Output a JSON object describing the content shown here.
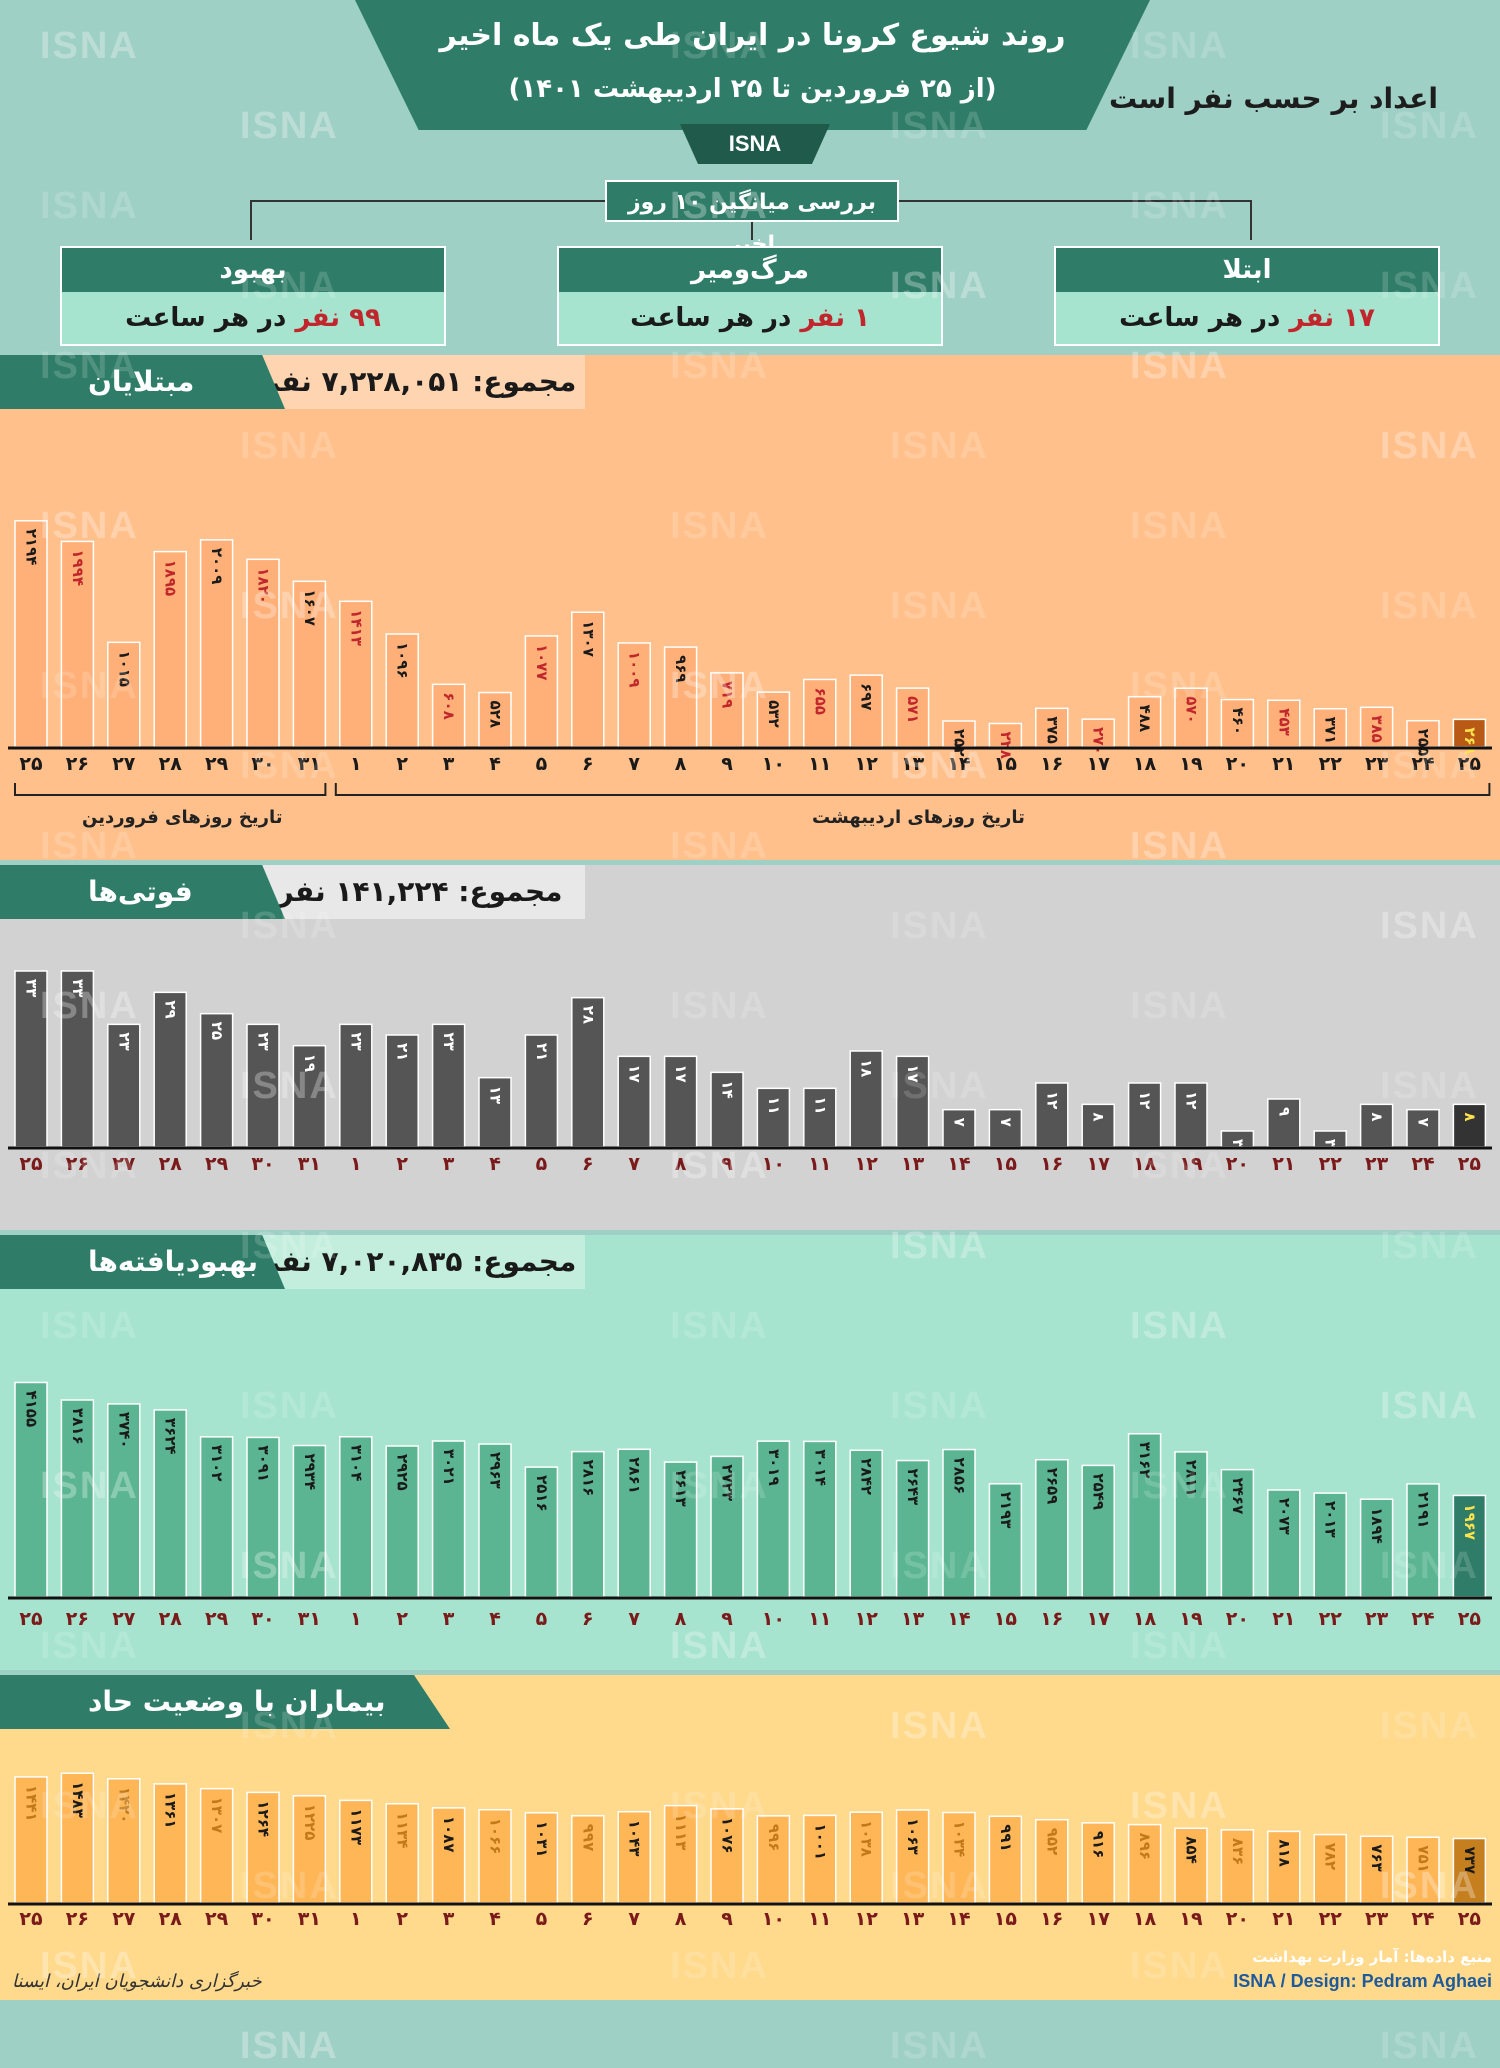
{
  "header": {
    "title": "روند شیوع کرونا در ایران طی یک ماه اخیر",
    "subtitle": "(از ۲۵ فروردین تا ۲۵ اردیبهشت ۱۴۰۱)",
    "brand": "ISNA",
    "note": "اعداد بر حسب نفر است"
  },
  "average": {
    "label": "بررسی میانگین ۱۰ روز اخیر",
    "recovery": {
      "title": "بهبود",
      "value": "۹۹ نفر",
      "suffix": "در هر ساعت"
    },
    "deaths": {
      "title": "مرگ‌ومیر",
      "value": "۱ نفر",
      "suffix": "در هر ساعت"
    },
    "infections": {
      "title": "ابتلا",
      "value": "۱۷ نفر",
      "suffix": "در هر ساعت"
    }
  },
  "watermark": "ISNA",
  "colors": {
    "teal": "#2f7d68",
    "orange": "#ffc08c",
    "gray": "#d2d2d2",
    "mint": "#a6e4cf",
    "yellow": "#ffd98c",
    "red": "#c0262c"
  },
  "bracket": {
    "farvardin": "تاریخ روزهای فروردین",
    "ordibehesht": "تاریخ روزهای اردیبهشت"
  },
  "footer": {
    "source": "منبع داده‌ها: آمار وزارت بهداشت",
    "credit": "ISNA / Design: Pedram Aghaei",
    "logo": "خبرگزاری دانشجویان ایران، ایسنا"
  },
  "chart_data": [
    {
      "type": "bar",
      "id": "infections",
      "title": "مبتلایان",
      "total": "مجموع: ۷,۲۲۸,۰۵۱ نفر",
      "categories": [
        "۲۵",
        "۲۶",
        "۲۷",
        "۲۸",
        "۲۹",
        "۳۰",
        "۳۱",
        "۱",
        "۲",
        "۳",
        "۴",
        "۵",
        "۶",
        "۷",
        "۸",
        "۹",
        "۱۰",
        "۱۱",
        "۱۲",
        "۱۳",
        "۱۴",
        "۱۵",
        "۱۶",
        "۱۷",
        "۱۸",
        "۱۹",
        "۲۰",
        "۲۱",
        "۲۲",
        "۲۳",
        "۲۴",
        "۲۵"
      ],
      "values": [
        2194,
        1994,
        1015,
        1895,
        2009,
        1820,
        1607,
        1413,
        1096,
        608,
        528,
        1077,
        1307,
        1009,
        969,
        719,
        532,
        655,
        697,
        571,
        252,
        228,
        375,
        270,
        488,
        570,
        460,
        453,
        371,
        385,
        255,
        268
      ],
      "labels": [
        "۲۱۹۴",
        "۱۹۹۴",
        "۱۰۱۵",
        "۱۸۹۵",
        "۲۰۰۹",
        "۱۸۲۰",
        "۱۶۰۷",
        "۱۴۱۳",
        "۱۰۹۶",
        "۶۰۸",
        "۵۲۸",
        "۱۰۷۷",
        "۱۳۰۷",
        "۱۰۰۹",
        "۹۶۹",
        "۷۱۹",
        "۵۳۲",
        "۶۵۵",
        "۶۹۷",
        "۵۷۱",
        "۲۵۲",
        "۲۲۸",
        "۳۷۵",
        "۲۷۰",
        "۴۸۸",
        "۵۷۰",
        "۴۶۰",
        "۴۵۳",
        "۳۷۱",
        "۳۸۵",
        "۲۵۵",
        "۲۶۸"
      ],
      "labelColors": [
        "k",
        "r",
        "k",
        "r",
        "k",
        "r",
        "k",
        "r",
        "k",
        "r",
        "k",
        "r",
        "k",
        "r",
        "k",
        "r",
        "k",
        "r",
        "k",
        "r",
        "k",
        "r",
        "k",
        "r",
        "k",
        "r",
        "k",
        "r",
        "k",
        "r",
        "k",
        "y"
      ]
    },
    {
      "type": "bar",
      "id": "deaths",
      "title": "فوتی‌ها",
      "total": "مجموع: ۱۴۱,۲۲۴ نفر",
      "categories": [
        "۲۵",
        "۲۶",
        "۲۷",
        "۲۸",
        "۲۹",
        "۳۰",
        "۳۱",
        "۱",
        "۲",
        "۳",
        "۴",
        "۵",
        "۶",
        "۷",
        "۸",
        "۹",
        "۱۰",
        "۱۱",
        "۱۲",
        "۱۳",
        "۱۴",
        "۱۵",
        "۱۶",
        "۱۷",
        "۱۸",
        "۱۹",
        "۲۰",
        "۲۱",
        "۲۲",
        "۲۳",
        "۲۴",
        "۲۵"
      ],
      "values": [
        33,
        33,
        23,
        29,
        25,
        23,
        19,
        23,
        21,
        23,
        13,
        21,
        28,
        17,
        17,
        14,
        11,
        11,
        18,
        17,
        7,
        7,
        12,
        8,
        12,
        12,
        3,
        9,
        3,
        8,
        7,
        8
      ],
      "labels": [
        "۳۳",
        "۳۳",
        "۲۳",
        "۲۹",
        "۲۵",
        "۲۳",
        "۱۹",
        "۲۳",
        "۲۱",
        "۲۳",
        "۱۳",
        "۲۱",
        "۲۸",
        "۱۷",
        "۱۷",
        "۱۴",
        "۱۱",
        "۱۱",
        "۱۸",
        "۱۷",
        "۷",
        "۷",
        "۱۲",
        "۸",
        "۱۲",
        "۱۲",
        "۳",
        "۹",
        "۳",
        "۸",
        "۷",
        "۸"
      ],
      "labelColors": [
        "w",
        "w",
        "w",
        "w",
        "w",
        "w",
        "w",
        "w",
        "w",
        "w",
        "w",
        "w",
        "w",
        "w",
        "w",
        "w",
        "w",
        "w",
        "w",
        "w",
        "w",
        "w",
        "w",
        "w",
        "w",
        "w",
        "w",
        "w",
        "w",
        "w",
        "w",
        "y"
      ]
    },
    {
      "type": "bar",
      "id": "recovered",
      "title": "بهبودیافته‌ها",
      "total": "مجموع: ۷,۰۲۰,۸۳۵ نفر",
      "categories": [
        "۲۵",
        "۲۶",
        "۲۷",
        "۲۸",
        "۲۹",
        "۳۰",
        "۳۱",
        "۱",
        "۲",
        "۳",
        "۴",
        "۵",
        "۶",
        "۷",
        "۸",
        "۹",
        "۱۰",
        "۱۱",
        "۱۲",
        "۱۳",
        "۱۴",
        "۱۵",
        "۱۶",
        "۱۷",
        "۱۸",
        "۱۹",
        "۲۰",
        "۲۱",
        "۲۲",
        "۲۳",
        "۲۴",
        "۲۵"
      ],
      "values": [
        4155,
        3816,
        3740,
        3624,
        3102,
        3091,
        2934,
        3104,
        2925,
        3021,
        2963,
        2516,
        2816,
        2861,
        2613,
        2723,
        3019,
        3014,
        2842,
        2643,
        2856,
        2193,
        2659,
        2549,
        3162,
        2811,
        2467,
        2073,
        2013,
        1894,
        2191,
        1967
      ],
      "labels": [
        "۴۱۵۵",
        "۳۸۱۶",
        "۳۷۴۰",
        "۳۶۲۴",
        "۳۱۰۲",
        "۳۰۹۱",
        "۲۹۳۴",
        "۳۱۰۴",
        "۲۹۲۵",
        "۳۰۲۱",
        "۲۹۶۳",
        "۲۵۱۶",
        "۲۸۱۶",
        "۲۸۶۱",
        "۲۶۱۳",
        "۲۷۲۳",
        "۳۰۱۹",
        "۳۰۱۴",
        "۲۸۴۲",
        "۲۶۴۳",
        "۲۸۵۶",
        "۲۱۹۳",
        "۲۶۵۹",
        "۲۵۴۹",
        "۳۱۶۲",
        "۲۸۱۱",
        "۲۴۶۷",
        "۲۰۷۳",
        "۲۰۱۳",
        "۱۸۹۴",
        "۲۱۹۱",
        "۱۹۶۷"
      ],
      "labelColors": [
        "k",
        "k",
        "k",
        "k",
        "k",
        "k",
        "k",
        "k",
        "k",
        "k",
        "k",
        "k",
        "k",
        "k",
        "k",
        "k",
        "k",
        "k",
        "k",
        "k",
        "k",
        "k",
        "k",
        "k",
        "k",
        "k",
        "k",
        "k",
        "k",
        "k",
        "k",
        "y"
      ]
    },
    {
      "type": "bar",
      "id": "critical",
      "title": "بیماران با وضعیت حاد",
      "categories": [
        "۲۵",
        "۲۶",
        "۲۷",
        "۲۸",
        "۲۹",
        "۳۰",
        "۳۱",
        "۱",
        "۲",
        "۳",
        "۴",
        "۵",
        "۶",
        "۷",
        "۸",
        "۹",
        "۱۰",
        "۱۱",
        "۱۲",
        "۱۳",
        "۱۴",
        "۱۵",
        "۱۶",
        "۱۷",
        "۱۸",
        "۱۹",
        "۲۰",
        "۲۱",
        "۲۲",
        "۲۳",
        "۲۴",
        "۲۵"
      ],
      "values": [
        1441,
        1483,
        1420,
        1361,
        1307,
        1264,
        1225,
        1173,
        1134,
        1087,
        1066,
        1031,
        997,
        1043,
        1113,
        1076,
        996,
        1001,
        1038,
        1063,
        1034,
        991,
        952,
        916,
        896,
        854,
        836,
        818,
        782,
        763,
        751,
        737
      ],
      "labels": [
        "۱۴۴۱",
        "۱۴۸۳",
        "۱۴۲۰",
        "۱۳۶۱",
        "۱۳۰۷",
        "۱۲۶۴",
        "۱۲۲۵",
        "۱۱۷۳",
        "۱۱۳۴",
        "۱۰۸۷",
        "۱۰۶۶",
        "۱۰۳۱",
        "۹۹۷",
        "۱۰۴۳",
        "۱۱۱۳",
        "۱۰۷۶",
        "۹۹۶",
        "۱۰۰۱",
        "۱۰۳۸",
        "۱۰۶۳",
        "۱۰۳۴",
        "۹۹۱",
        "۹۵۲",
        "۹۱۶",
        "۸۹۶",
        "۸۵۴",
        "۸۳۶",
        "۸۱۸",
        "۷۸۲",
        "۷۶۳",
        "۷۵۱",
        "۷۳۷"
      ],
      "labelColors": [
        "o",
        "k",
        "o",
        "k",
        "o",
        "k",
        "o",
        "k",
        "o",
        "k",
        "o",
        "k",
        "o",
        "k",
        "o",
        "k",
        "o",
        "k",
        "o",
        "k",
        "o",
        "k",
        "o",
        "k",
        "o",
        "k",
        "o",
        "k",
        "o",
        "k",
        "o",
        "k"
      ]
    }
  ]
}
